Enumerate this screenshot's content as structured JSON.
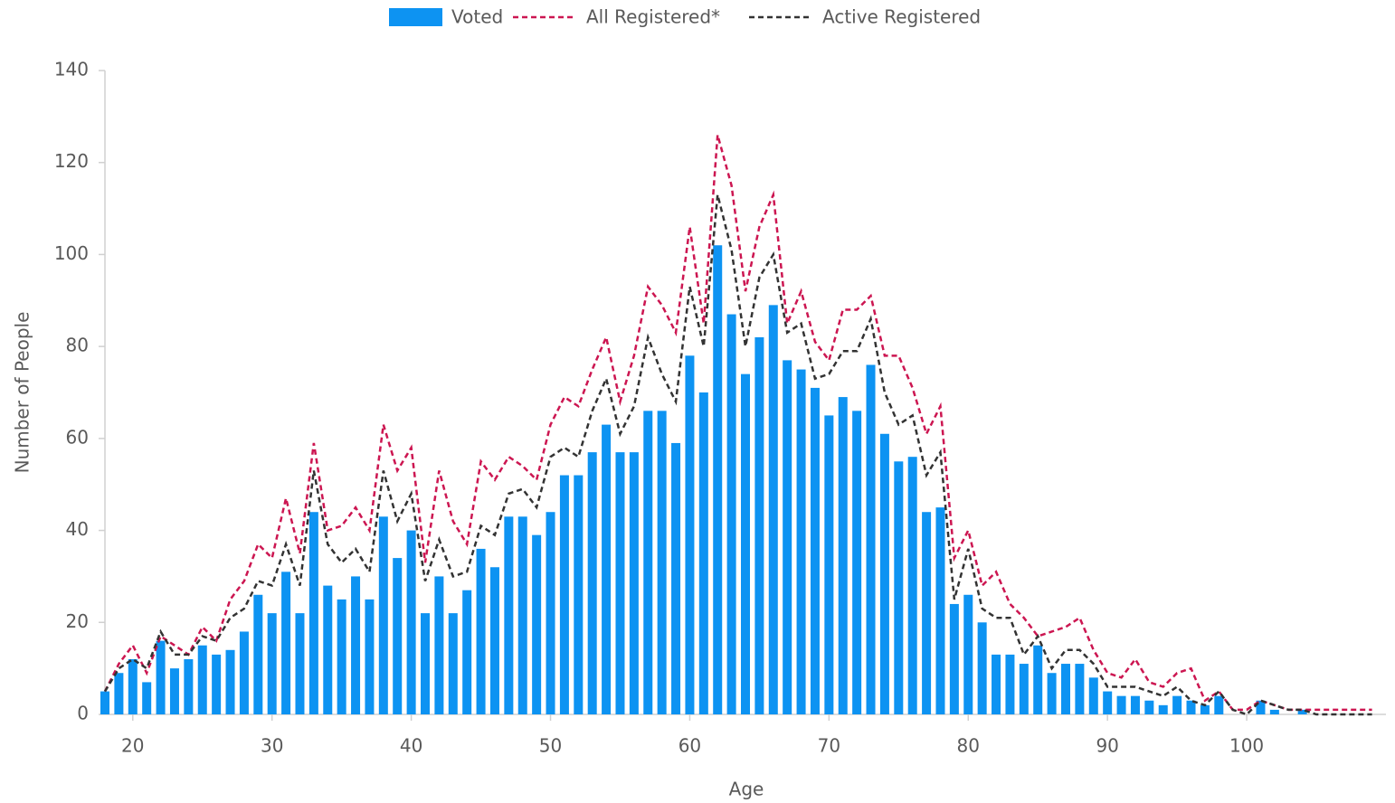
{
  "chart_data": {
    "type": "bar_line",
    "x_label": "Age",
    "y_label": "Number of People",
    "x": [
      18,
      19,
      20,
      21,
      22,
      23,
      24,
      25,
      26,
      27,
      28,
      29,
      30,
      31,
      32,
      33,
      34,
      35,
      36,
      37,
      38,
      39,
      40,
      41,
      42,
      43,
      44,
      45,
      46,
      47,
      48,
      49,
      50,
      51,
      52,
      53,
      54,
      55,
      56,
      57,
      58,
      59,
      60,
      61,
      62,
      63,
      64,
      65,
      66,
      67,
      68,
      69,
      70,
      71,
      72,
      73,
      74,
      75,
      76,
      77,
      78,
      79,
      80,
      81,
      82,
      83,
      84,
      85,
      86,
      87,
      88,
      89,
      90,
      91,
      92,
      93,
      94,
      95,
      96,
      97,
      98,
      99,
      100,
      101,
      102,
      103,
      104,
      105,
      106,
      107,
      108,
      109
    ],
    "series": [
      {
        "name": "Voted",
        "kind": "bar",
        "color": "#0d93f2",
        "values": [
          5,
          9,
          12,
          7,
          16,
          10,
          12,
          15,
          13,
          14,
          18,
          26,
          22,
          31,
          22,
          44,
          28,
          25,
          30,
          25,
          43,
          34,
          40,
          22,
          30,
          22,
          27,
          36,
          32,
          43,
          43,
          39,
          44,
          52,
          52,
          57,
          63,
          57,
          57,
          66,
          66,
          59,
          78,
          70,
          102,
          87,
          74,
          82,
          89,
          77,
          75,
          71,
          65,
          69,
          66,
          76,
          61,
          55,
          56,
          44,
          45,
          24,
          26,
          20,
          13,
          13,
          11,
          15,
          9,
          11,
          11,
          8,
          5,
          4,
          4,
          3,
          2,
          4,
          3,
          2,
          4,
          0,
          0,
          3,
          1,
          0,
          1,
          null,
          null,
          null,
          null,
          null
        ]
      },
      {
        "name": "All Registered*",
        "kind": "line",
        "color": "#cc1651",
        "values": [
          5,
          11,
          15,
          9,
          17,
          15,
          13,
          19,
          16,
          25,
          29,
          37,
          34,
          47,
          35,
          59,
          40,
          41,
          45,
          40,
          63,
          53,
          58,
          33,
          53,
          42,
          37,
          55,
          51,
          56,
          54,
          51,
          63,
          69,
          67,
          75,
          82,
          68,
          78,
          93,
          89,
          83,
          106,
          85,
          126,
          115,
          92,
          106,
          113,
          85,
          92,
          81,
          77,
          88,
          88,
          91,
          78,
          78,
          71,
          61,
          67,
          34,
          40,
          28,
          31,
          24,
          21,
          17,
          18,
          19,
          21,
          14,
          9,
          8,
          12,
          7,
          6,
          9,
          10,
          3,
          5,
          1,
          1,
          3,
          2,
          1,
          1,
          1,
          1,
          1,
          1,
          1
        ]
      },
      {
        "name": "Active Registered",
        "kind": "line",
        "color": "#333333",
        "values": [
          5,
          10,
          12,
          10,
          18,
          13,
          13,
          17,
          16,
          21,
          23,
          29,
          28,
          37,
          28,
          53,
          37,
          33,
          36,
          31,
          53,
          42,
          48,
          29,
          38,
          30,
          31,
          41,
          39,
          48,
          49,
          45,
          56,
          58,
          56,
          66,
          73,
          61,
          67,
          82,
          74,
          68,
          93,
          80,
          113,
          101,
          80,
          95,
          100,
          83,
          85,
          73,
          74,
          79,
          79,
          86,
          70,
          63,
          65,
          52,
          57,
          25,
          36,
          23,
          21,
          21,
          13,
          17,
          10,
          14,
          14,
          11,
          6,
          6,
          6,
          5,
          4,
          6,
          3,
          2,
          5,
          1,
          0,
          3,
          2,
          1,
          1,
          0,
          0,
          0,
          0,
          0
        ]
      }
    ],
    "xlim": [
      18,
      110
    ],
    "xticks": [
      20,
      30,
      40,
      50,
      60,
      70,
      80,
      90,
      100
    ],
    "ylim": [
      0,
      140
    ],
    "yticks": [
      0,
      20,
      40,
      60,
      80,
      100,
      120,
      140
    ],
    "legend": "top"
  }
}
